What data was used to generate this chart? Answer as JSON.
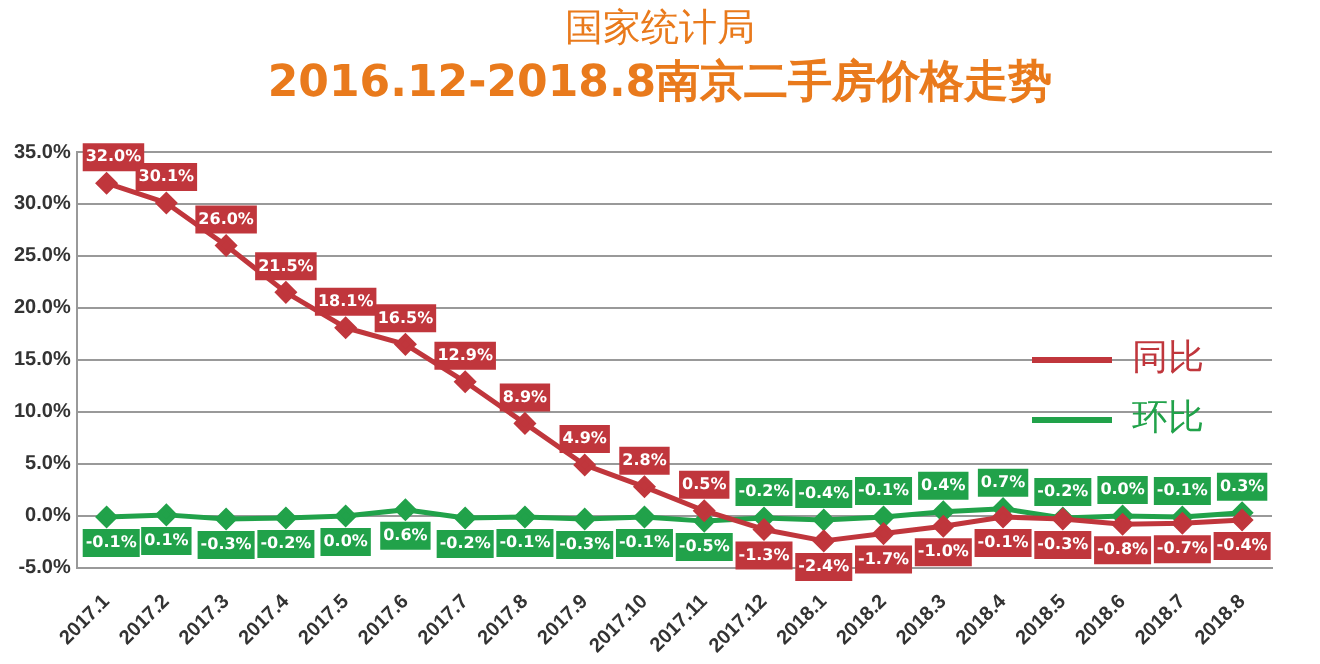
{
  "chart_data": {
    "type": "line",
    "title": "国家统计局",
    "subtitle": "2016.12-2018.8南京二手房价格走势",
    "categories": [
      "2017.1",
      "2017.2",
      "2017.3",
      "2017.4",
      "2017.5",
      "2017.6",
      "2017.7",
      "2017.8",
      "2017.9",
      "2017.10",
      "2017.11",
      "2017.12",
      "2018.1",
      "2018.2",
      "2018.3",
      "2018.4",
      "2018.5",
      "2018.6",
      "2018.7",
      "2018.8"
    ],
    "series": [
      {
        "name": "同比",
        "color": "#c0363c",
        "values": [
          32.0,
          30.1,
          26.0,
          21.5,
          18.1,
          16.5,
          12.9,
          8.9,
          4.9,
          2.8,
          0.5,
          -1.3,
          -2.4,
          -1.7,
          -1.0,
          -0.1,
          -0.3,
          -0.8,
          -0.7,
          -0.4
        ],
        "value_labels": [
          "32.0%",
          "30.1%",
          "26.0%",
          "21.5%",
          "18.1%",
          "16.5%",
          "12.9%",
          "8.9%",
          "4.9%",
          "2.8%",
          "0.5%",
          "-1.3%",
          "-2.4%",
          "-1.7%",
          "-1.0%",
          "-0.1%",
          "-0.3%",
          "-0.8%",
          "-0.7%",
          "-0.4%"
        ]
      },
      {
        "name": "环比",
        "color": "#21a24a",
        "values": [
          -0.1,
          0.1,
          -0.3,
          -0.2,
          0.0,
          0.6,
          -0.2,
          -0.1,
          -0.3,
          -0.1,
          -0.5,
          -0.2,
          -0.4,
          -0.1,
          0.4,
          0.7,
          -0.2,
          0.0,
          -0.1,
          0.3
        ],
        "value_labels": [
          "-0.1%",
          "0.1%",
          "-0.3%",
          "-0.2%",
          "0.0%",
          "0.6%",
          "-0.2%",
          "-0.1%",
          "-0.3%",
          "-0.1%",
          "-0.5%",
          "-0.2%",
          "-0.4%",
          "-0.1%",
          "0.4%",
          "0.7%",
          "-0.2%",
          "0.0%",
          "-0.1%",
          "0.3%"
        ]
      }
    ],
    "ylim": [
      -5,
      35
    ],
    "yticks": [
      {
        "value": -5,
        "label": "-5.0%"
      },
      {
        "value": 0,
        "label": "0.0%"
      },
      {
        "value": 5,
        "label": "5.0%"
      },
      {
        "value": 10,
        "label": "10.0%"
      },
      {
        "value": 15,
        "label": "15.0%"
      },
      {
        "value": 20,
        "label": "20.0%"
      },
      {
        "value": 25,
        "label": "25.0%"
      },
      {
        "value": 30,
        "label": "30.0%"
      },
      {
        "value": 35,
        "label": "35.0%"
      }
    ],
    "grid": "y",
    "legend": "right",
    "marker": "diamond",
    "line_style": "solid"
  }
}
